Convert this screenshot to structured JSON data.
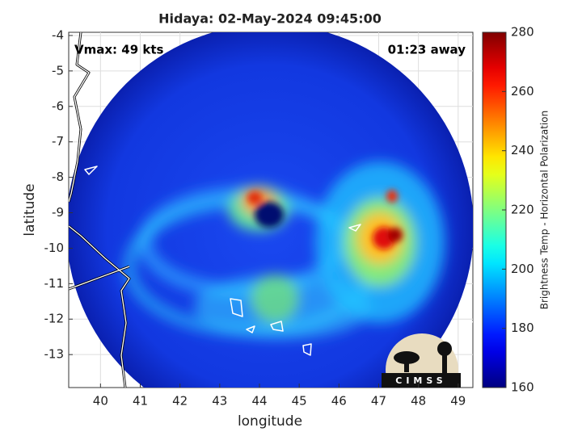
{
  "chart_data": {
    "type": "image",
    "title": "Hidaya: 02-May-2024 09:45:00",
    "annotations": [
      "Vmax: 49 kts",
      "01:23 away"
    ],
    "xlabel": "longitude",
    "ylabel": "latitude",
    "xlim": [
      39.2,
      49.37
    ],
    "xticks": [
      40,
      41,
      42,
      43,
      44,
      45,
      46,
      47,
      48,
      49
    ],
    "ylim": [
      -13.93,
      -3.91
    ],
    "yticks": [
      -4,
      -5,
      -6,
      -7,
      -8,
      -9,
      -10,
      -11,
      -12,
      -13
    ],
    "grid": true,
    "colorbar": {
      "label": "Brightness Temp - Horizontal Polarization",
      "lim": [
        160,
        280
      ],
      "ticks": [
        160,
        180,
        200,
        220,
        240,
        260,
        280
      ],
      "colormap": "jet"
    },
    "logo": "CIMSS"
  }
}
